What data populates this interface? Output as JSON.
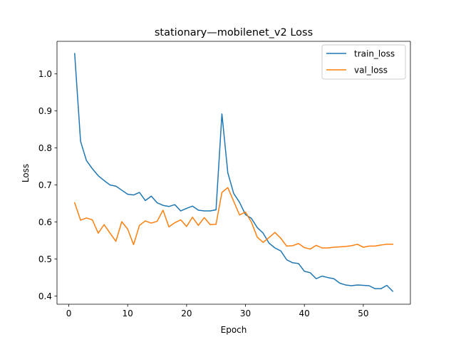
{
  "chart_data": {
    "type": "line",
    "title": "stationary—mobilenet_v2 Loss",
    "xlabel": "Epoch",
    "ylabel": "Loss",
    "xlim": [
      -2,
      58
    ],
    "ylim": [
      0.378,
      1.088
    ],
    "xticks": [
      0,
      10,
      20,
      30,
      40,
      50
    ],
    "yticks": [
      0.4,
      0.5,
      0.6,
      0.7,
      0.8,
      0.9,
      1.0
    ],
    "legend_position": "top-right",
    "grid": false,
    "x": [
      1,
      2,
      3,
      4,
      5,
      6,
      7,
      8,
      9,
      10,
      11,
      12,
      13,
      14,
      15,
      16,
      17,
      18,
      19,
      20,
      21,
      22,
      23,
      24,
      25,
      26,
      27,
      28,
      29,
      30,
      31,
      32,
      33,
      34,
      35,
      36,
      37,
      38,
      39,
      40,
      41,
      42,
      43,
      44,
      45,
      46,
      47,
      48,
      49,
      50,
      51,
      52,
      53,
      54,
      55
    ],
    "series": [
      {
        "name": "train_loss",
        "color": "#1f77b4",
        "values": [
          1.055,
          0.818,
          0.766,
          0.744,
          0.725,
          0.712,
          0.7,
          0.697,
          0.686,
          0.675,
          0.673,
          0.68,
          0.658,
          0.67,
          0.652,
          0.645,
          0.642,
          0.647,
          0.63,
          0.637,
          0.643,
          0.632,
          0.63,
          0.63,
          0.633,
          0.892,
          0.733,
          0.677,
          0.653,
          0.62,
          0.61,
          0.585,
          0.57,
          0.543,
          0.53,
          0.522,
          0.498,
          0.49,
          0.488,
          0.467,
          0.463,
          0.447,
          0.454,
          0.45,
          0.447,
          0.435,
          0.43,
          0.428,
          0.43,
          0.429,
          0.428,
          0.42,
          0.42,
          0.429,
          0.413
        ]
      },
      {
        "name": "val_loss",
        "color": "#ff7f0e",
        "values": [
          0.652,
          0.605,
          0.611,
          0.606,
          0.57,
          0.593,
          0.57,
          0.548,
          0.601,
          0.581,
          0.539,
          0.591,
          0.603,
          0.597,
          0.602,
          0.632,
          0.587,
          0.598,
          0.606,
          0.588,
          0.613,
          0.591,
          0.612,
          0.593,
          0.594,
          0.68,
          0.693,
          0.656,
          0.619,
          0.627,
          0.6,
          0.559,
          0.545,
          0.558,
          0.572,
          0.556,
          0.535,
          0.536,
          0.542,
          0.531,
          0.527,
          0.537,
          0.53,
          0.53,
          0.532,
          0.533,
          0.534,
          0.536,
          0.54,
          0.532,
          0.535,
          0.535,
          0.538,
          0.54,
          0.54
        ]
      }
    ]
  }
}
